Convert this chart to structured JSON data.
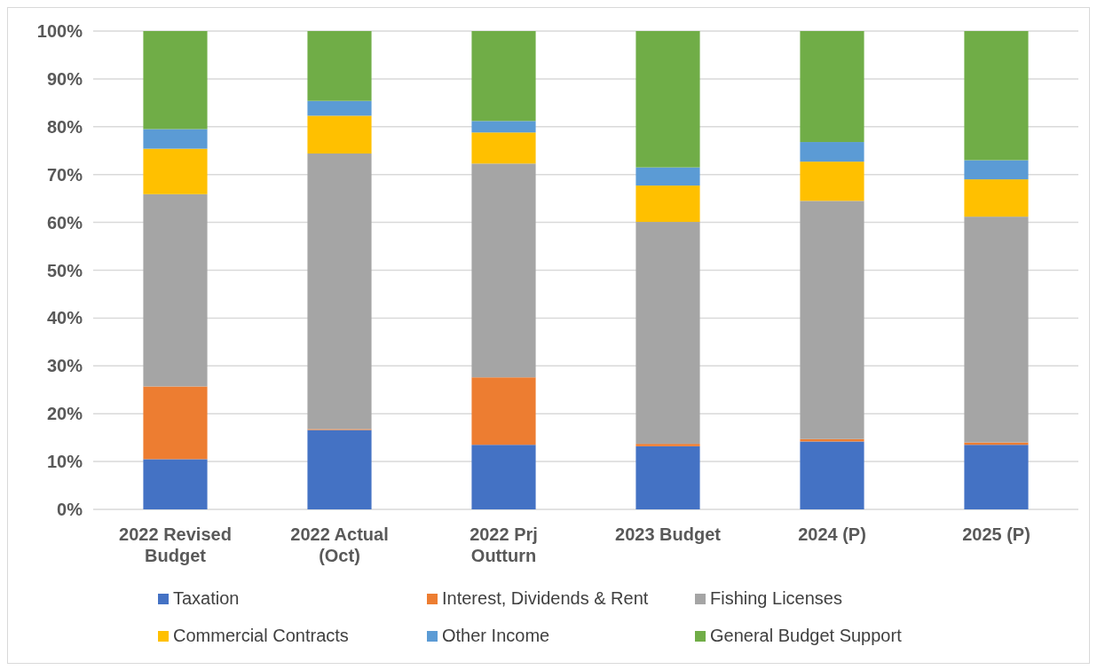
{
  "chart_data": {
    "type": "bar",
    "stacked": true,
    "categories": [
      "2022 Revised Budget",
      "2022 Actual (Oct)",
      "2022 Prj Outturn",
      "2023 Budget",
      "2024 (P)",
      "2025 (P)"
    ],
    "series": [
      {
        "name": "Taxation",
        "color": "#4472c4",
        "values": [
          10.5,
          16.6,
          13.5,
          13.2,
          14.2,
          13.5
        ]
      },
      {
        "name": "Interest, Dividends & Rent",
        "color": "#ed7d31",
        "values": [
          15.2,
          0.2,
          14.1,
          0.5,
          0.5,
          0.5
        ]
      },
      {
        "name": "Fishing Licenses",
        "color": "#a5a5a5",
        "values": [
          40.2,
          57.6,
          44.7,
          46.4,
          49.8,
          47.2
        ]
      },
      {
        "name": "Commercial Contracts",
        "color": "#ffc000",
        "values": [
          9.5,
          7.9,
          6.5,
          7.6,
          8.2,
          7.8
        ]
      },
      {
        "name": "Other Income",
        "color": "#5b9bd5",
        "values": [
          4.1,
          3.1,
          2.4,
          3.8,
          4.1,
          4.0
        ]
      },
      {
        "name": "General Budget Support",
        "color": "#70ad47",
        "values": [
          20.5,
          14.6,
          18.8,
          28.5,
          23.2,
          27.0
        ]
      }
    ],
    "ylim": [
      0,
      100
    ],
    "yticks": [
      {
        "value": 0,
        "label": "0%"
      },
      {
        "value": 10,
        "label": "10%"
      },
      {
        "value": 20,
        "label": "20%"
      },
      {
        "value": 30,
        "label": "30%"
      },
      {
        "value": 40,
        "label": "40%"
      },
      {
        "value": 50,
        "label": "50%"
      },
      {
        "value": 60,
        "label": "60%"
      },
      {
        "value": 70,
        "label": "70%"
      },
      {
        "value": 80,
        "label": "80%"
      },
      {
        "value": 90,
        "label": "90%"
      },
      {
        "value": 100,
        "label": "100%"
      }
    ],
    "grid": "y",
    "legend": "bottom"
  }
}
